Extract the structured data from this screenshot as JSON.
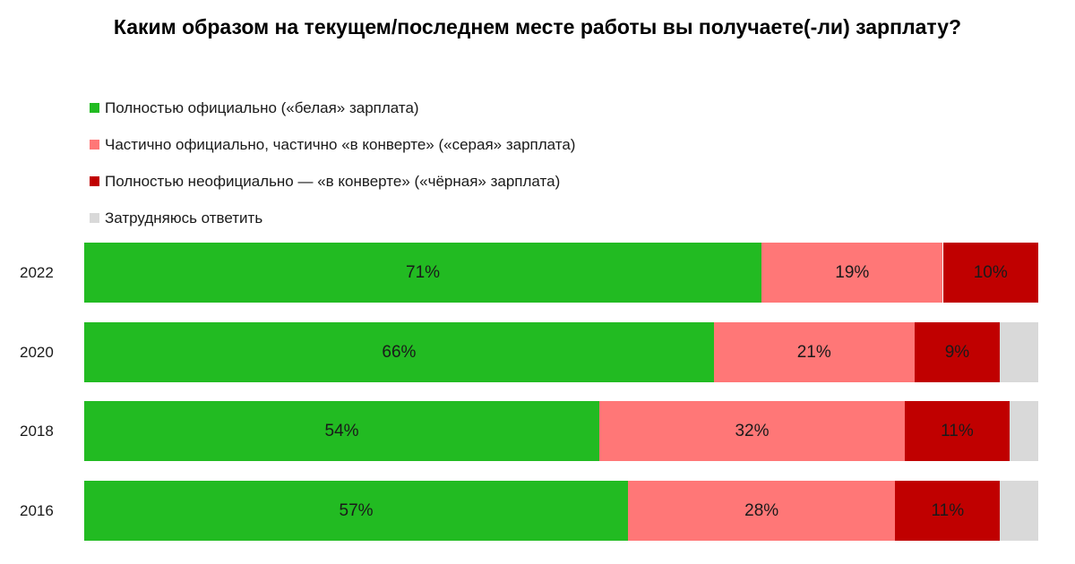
{
  "chart_data": {
    "type": "bar",
    "orientation": "horizontal",
    "stacked": true,
    "normalized_percent": true,
    "title": "Каким образом на текущем/последнем месте работы вы получаете(-ли) зарплату?",
    "xlabel": "",
    "ylabel": "",
    "xlim": [
      0,
      100
    ],
    "legend_position": "top-left",
    "categories": [
      "2022",
      "2020",
      "2018",
      "2016"
    ],
    "series": [
      {
        "name": "Полностью официально («белая» зарплата)",
        "color": "#22bb22",
        "values": [
          71,
          66,
          54,
          57
        ],
        "labels": [
          "71%",
          "66%",
          "54%",
          "57%"
        ]
      },
      {
        "name": "Частично официально, частично «в конверте» («серая» зарплата)",
        "color": "#ff7777",
        "values": [
          19,
          21,
          32,
          28
        ],
        "labels": [
          "19%",
          "21%",
          "32%",
          "28%"
        ]
      },
      {
        "name": "Полностью неофициально — «в конверте» («чёрная» зарплата)",
        "color": "#c00000",
        "values": [
          10,
          9,
          11,
          11
        ],
        "labels": [
          "10%",
          "9%",
          "11%",
          "11%"
        ]
      },
      {
        "name": "Затрудняюсь ответить",
        "color": "#d9d9d9",
        "values": [
          0,
          4,
          3,
          4
        ],
        "labels": [
          "",
          "",
          "",
          ""
        ]
      }
    ]
  }
}
